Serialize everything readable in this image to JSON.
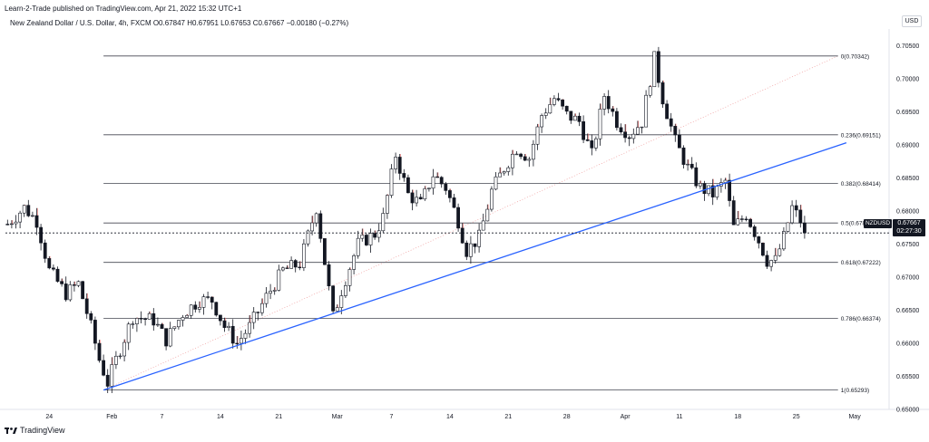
{
  "header": {
    "publisher": "Learn-2-Trade published on TradingView.com, Apr 21, 2022 15:32 UTC+1",
    "symbol_line": "New Zealand Dollar / U.S. Dollar, 4h, FXCM  O0.67847 H0.67951 L0.67653 C0.67667 −0.00180 (−0.27%)",
    "currency": "USD"
  },
  "footer": {
    "logo_text": "TradingView"
  },
  "price_tag": {
    "symbol": "NZDUSD",
    "price": "0.67667",
    "countdown": "02:27:30"
  },
  "colors": {
    "up": "#26a69a",
    "down": "#ef5350",
    "candle": "#131722",
    "trendline": "#2962ff",
    "fib": "#434651",
    "grid": "#e0e3eb"
  },
  "chart_data": {
    "type": "candlestick",
    "ylim": [
      0.65,
      0.7075
    ],
    "y_ticks": [
      "0.70500",
      "0.70000",
      "0.69500",
      "0.69000",
      "0.68500",
      "0.68000",
      "0.67500",
      "0.67000",
      "0.66500",
      "0.66000",
      "0.65500",
      "0.65000"
    ],
    "y_tick_values": [
      0.705,
      0.7,
      0.695,
      0.69,
      0.685,
      0.68,
      0.675,
      0.67,
      0.665,
      0.66,
      0.655,
      0.65
    ],
    "x_ticks": [
      "24",
      "Feb",
      "7",
      "14",
      "21",
      "Mar",
      "7",
      "14",
      "21",
      "28",
      "Apr",
      "11",
      "18",
      "25",
      "May"
    ],
    "x_tick_index": [
      10,
      25,
      37,
      51,
      65,
      79,
      92,
      106,
      120,
      134,
      148,
      161,
      175,
      189,
      203
    ],
    "bar_count": 210,
    "last_price": 0.67667,
    "fib_levels": [
      {
        "label": "0(0.70342)",
        "value": 0.70342
      },
      {
        "label": "0.236(0.69151)",
        "value": 0.69151
      },
      {
        "label": "0.382(0.68414)",
        "value": 0.68414
      },
      {
        "label": "0.5(0.67818)",
        "value": 0.67818
      },
      {
        "label": "0.618(0.67222)",
        "value": 0.67222
      },
      {
        "label": "0.786(0.66374)",
        "value": 0.66374
      },
      {
        "label": "1(0.65293)",
        "value": 0.65293
      }
    ],
    "fib_start_index": 23,
    "fib_end_index": 199,
    "fib_diagonal": {
      "from": [
        23,
        0.65293
      ],
      "to": [
        199,
        0.70342
      ]
    },
    "trendline": {
      "from": [
        23,
        0.65293
      ],
      "to": [
        201,
        0.6903
      ]
    },
    "anchors": [
      [
        0,
        0.678
      ],
      [
        4,
        0.6805
      ],
      [
        7,
        0.6785
      ],
      [
        10,
        0.671
      ],
      [
        14,
        0.6675
      ],
      [
        17,
        0.669
      ],
      [
        20,
        0.6625
      ],
      [
        22,
        0.6575
      ],
      [
        24,
        0.654
      ],
      [
        26,
        0.6575
      ],
      [
        30,
        0.664
      ],
      [
        35,
        0.6635
      ],
      [
        38,
        0.6605
      ],
      [
        42,
        0.6645
      ],
      [
        46,
        0.6665
      ],
      [
        49,
        0.6665
      ],
      [
        52,
        0.6625
      ],
      [
        55,
        0.66
      ],
      [
        58,
        0.6625
      ],
      [
        62,
        0.667
      ],
      [
        66,
        0.671
      ],
      [
        70,
        0.672
      ],
      [
        74,
        0.6805
      ],
      [
        78,
        0.664
      ],
      [
        80,
        0.668
      ],
      [
        84,
        0.675
      ],
      [
        88,
        0.6765
      ],
      [
        90,
        0.679
      ],
      [
        93,
        0.6885
      ],
      [
        96,
        0.6825
      ],
      [
        99,
        0.681
      ],
      [
        102,
        0.6855
      ],
      [
        105,
        0.6835
      ],
      [
        108,
        0.6785
      ],
      [
        110,
        0.674
      ],
      [
        113,
        0.676
      ],
      [
        116,
        0.683
      ],
      [
        119,
        0.6865
      ],
      [
        122,
        0.6895
      ],
      [
        125,
        0.688
      ],
      [
        128,
        0.6945
      ],
      [
        131,
        0.697
      ],
      [
        134,
        0.6945
      ],
      [
        137,
        0.6935
      ],
      [
        140,
        0.6885
      ],
      [
        143,
        0.6975
      ],
      [
        146,
        0.6935
      ],
      [
        149,
        0.6915
      ],
      [
        152,
        0.6935
      ],
      [
        155,
        0.703
      ],
      [
        157,
        0.697
      ],
      [
        160,
        0.6905
      ],
      [
        163,
        0.6865
      ],
      [
        166,
        0.6835
      ],
      [
        169,
        0.6825
      ],
      [
        172,
        0.6845
      ],
      [
        174,
        0.6775
      ],
      [
        177,
        0.6795
      ],
      [
        180,
        0.6755
      ],
      [
        182,
        0.6725
      ],
      [
        184,
        0.6725
      ],
      [
        186,
        0.676
      ],
      [
        188,
        0.6805
      ],
      [
        190,
        0.6785
      ],
      [
        191,
        0.67667
      ]
    ]
  }
}
